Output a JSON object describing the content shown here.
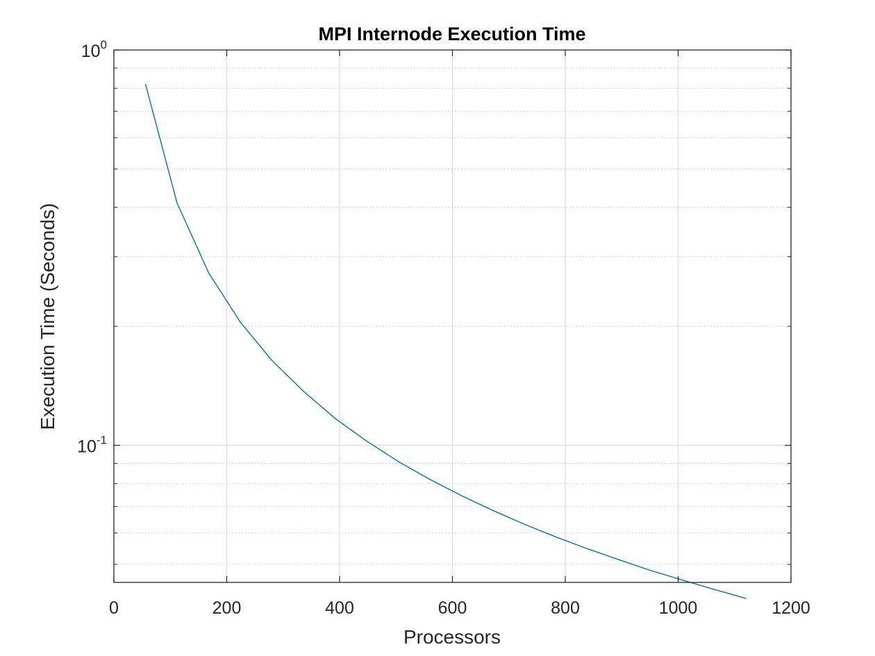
{
  "chart_data": {
    "type": "line",
    "title": "MPI Internode Execution Time",
    "xlabel": "Processors",
    "ylabel": "Execution Time (Seconds)",
    "xlim": [
      0,
      1200
    ],
    "ylim": [
      0.045,
      1
    ],
    "x_scale": "linear",
    "y_scale": "log",
    "x_ticks": [
      0,
      200,
      400,
      600,
      800,
      1000,
      1200
    ],
    "x_tick_labels": [
      "0",
      "200",
      "400",
      "600",
      "800",
      "1000",
      "1200"
    ],
    "y_ticks": [
      {
        "value": 1,
        "base": "10",
        "exp": "0"
      },
      {
        "value": 0.1,
        "base": "10",
        "exp": "-1"
      }
    ],
    "grid": true,
    "minor_grid_y": true,
    "legend": false,
    "series": [
      {
        "color": "#0072BD",
        "x": [
          56,
          112,
          168,
          224,
          280,
          336,
          392,
          448,
          504,
          560,
          616,
          672,
          728,
          784,
          840,
          896,
          952,
          1008,
          1064,
          1120
        ],
        "y": [
          0.82,
          0.41,
          0.273,
          0.205,
          0.164,
          0.137,
          0.117,
          0.1025,
          0.091,
          0.082,
          0.0746,
          0.0684,
          0.0631,
          0.0586,
          0.0547,
          0.0513,
          0.0482,
          0.0456,
          0.0432,
          0.041
        ]
      }
    ]
  }
}
